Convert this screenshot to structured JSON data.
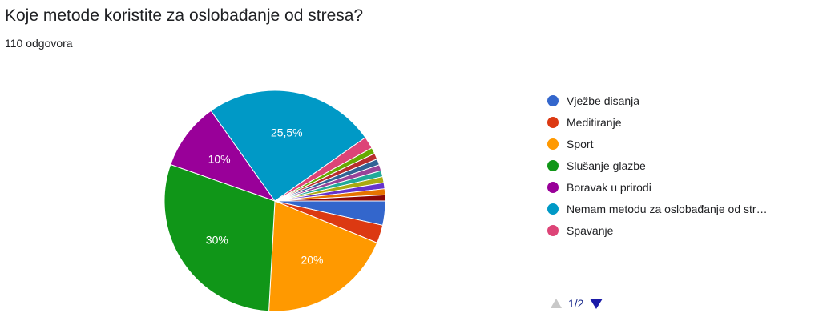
{
  "question": {
    "title": "Koje metode koristite za oslobađanje od stresa?",
    "responses": "110 odgovora"
  },
  "legend": {
    "items": [
      {
        "label": "Vježbe disanja",
        "color": "#3366cc"
      },
      {
        "label": "Meditiranje",
        "color": "#dc3912"
      },
      {
        "label": "Sport",
        "color": "#ff9900"
      },
      {
        "label": "Slušanje glazbe",
        "color": "#109618"
      },
      {
        "label": "Boravak u prirodi",
        "color": "#990099"
      },
      {
        "label": "Nemam metodu za oslobađanje od str…",
        "color": "#0099c6"
      },
      {
        "label": "Spavanje",
        "color": "#dd4477"
      }
    ],
    "pager": {
      "current": "1/2",
      "prev_icon": "triangle-up-icon",
      "next_icon": "triangle-down-icon"
    }
  },
  "chart_data": {
    "type": "pie",
    "title": "Koje metode koristite za oslobađanje od stresa?",
    "start": "3 o'clock, clockwise",
    "slices": [
      {
        "name": "Vježbe disanja",
        "value": 3.6,
        "color": "#3366cc",
        "label": ""
      },
      {
        "name": "Meditiranje",
        "value": 2.7,
        "color": "#dc3912",
        "label": ""
      },
      {
        "name": "Sport",
        "value": 20,
        "color": "#ff9900",
        "label": "20%"
      },
      {
        "name": "Slušanje glazbe",
        "value": 30,
        "color": "#109618",
        "label": "30%"
      },
      {
        "name": "Boravak u prirodi",
        "value": 10,
        "color": "#990099",
        "label": "10%"
      },
      {
        "name": "Nemam metodu za oslobađanje od stresa",
        "value": 25.5,
        "color": "#0099c6",
        "label": "25,5%"
      },
      {
        "name": "Spavanje",
        "value": 1.8,
        "color": "#dd4477",
        "label": ""
      },
      {
        "name": "",
        "value": 0.9,
        "color": "#66aa00",
        "label": ""
      },
      {
        "name": "",
        "value": 0.9,
        "color": "#b82e2e",
        "label": ""
      },
      {
        "name": "",
        "value": 0.9,
        "color": "#316395",
        "label": ""
      },
      {
        "name": "",
        "value": 0.9,
        "color": "#994499",
        "label": ""
      },
      {
        "name": "",
        "value": 0.9,
        "color": "#22aa99",
        "label": ""
      },
      {
        "name": "",
        "value": 0.9,
        "color": "#aaaa11",
        "label": ""
      },
      {
        "name": "",
        "value": 0.9,
        "color": "#6633cc",
        "label": ""
      },
      {
        "name": "",
        "value": 0.9,
        "color": "#e67300",
        "label": ""
      },
      {
        "name": "",
        "value": 0.9,
        "color": "#8b0707",
        "label": ""
      }
    ]
  }
}
